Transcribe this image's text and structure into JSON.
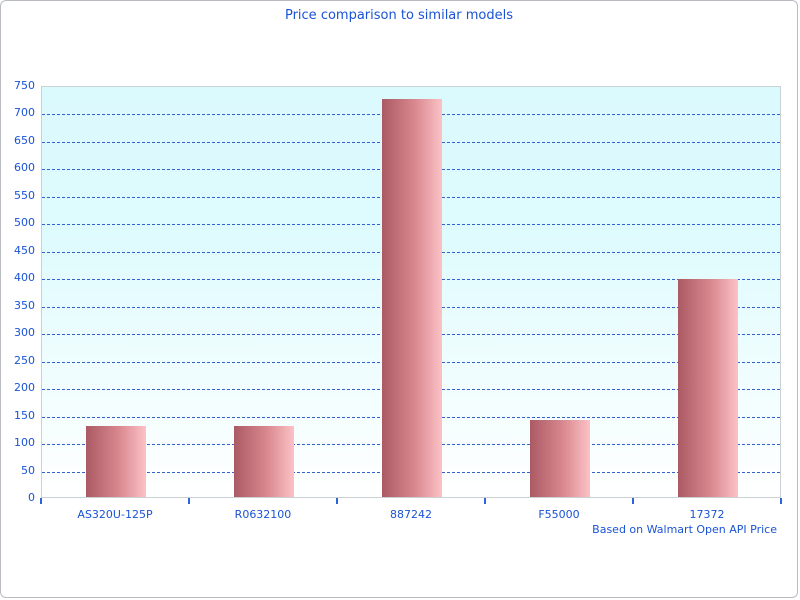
{
  "page": {
    "title": "Price comparison to similar models",
    "footer": "Based on Walmart Open API Price"
  },
  "chart_data": {
    "type": "bar",
    "title": "Price comparison to similar models",
    "categories": [
      "AS320U-125P",
      "R0632100",
      "887242",
      "F55000",
      "17372"
    ],
    "values": [
      130,
      130,
      724,
      140,
      396
    ],
    "xlabel": "",
    "ylabel": "",
    "ylim": [
      0,
      750
    ],
    "ytick_step": 50,
    "yticks": [
      0,
      50,
      100,
      150,
      200,
      250,
      300,
      350,
      400,
      450,
      500,
      550,
      600,
      650,
      700,
      750
    ],
    "grid": "horizontal-dashed",
    "legend": "none",
    "annotation": "Based on Walmart Open API Price",
    "colors": {
      "text_accent": "#1a53d6",
      "gridline": "#3261cd",
      "axis_tick": "#2a66d8",
      "bar_gradient_start": "#ab5a64",
      "bar_gradient_end": "#fbc2c6",
      "plot_bg_top": "#dbfafd",
      "plot_bg_bottom": "#ffffff",
      "plot_border": "#cbd0d4",
      "window_border": "#b9bdc2"
    }
  }
}
